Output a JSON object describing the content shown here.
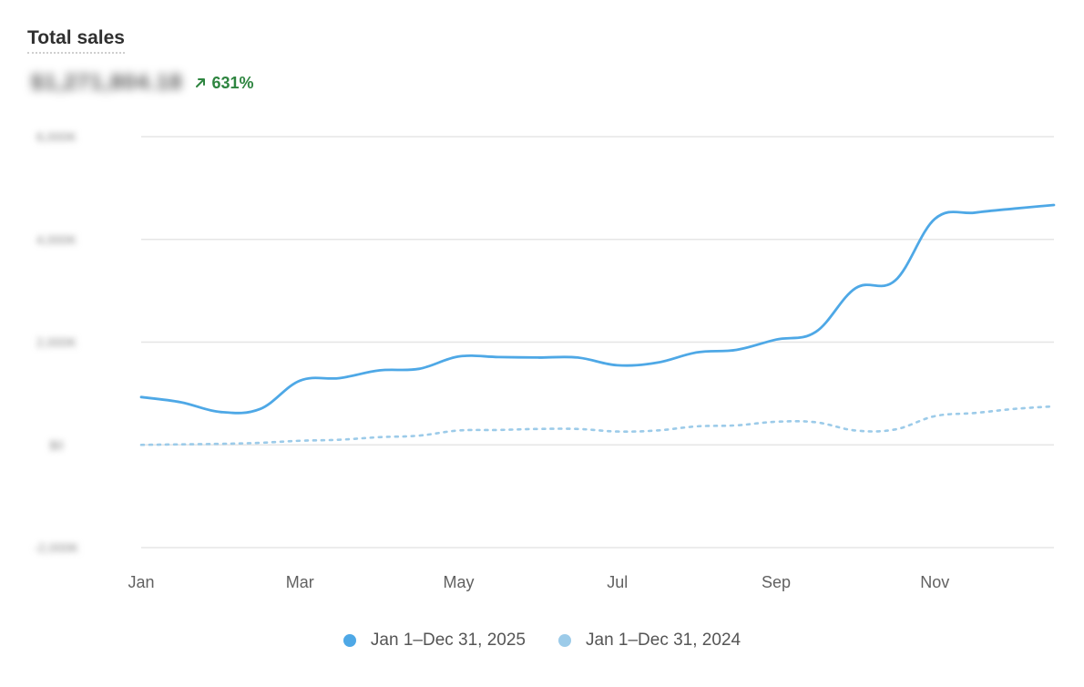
{
  "header": {
    "title": "Total sales",
    "value": "$1,271,804.18",
    "change_pct": "631%",
    "change_direction": "up",
    "change_color": "#2e8540"
  },
  "chart_data": {
    "type": "line",
    "title": "Total sales",
    "x_ticks": [
      "Jan",
      "Mar",
      "May",
      "Jul",
      "Sep",
      "Nov"
    ],
    "y_ticks": [
      "-2,000K",
      "$0",
      "2,000K",
      "4,000K",
      "6,000K"
    ],
    "ylim": [
      -2000,
      6000
    ],
    "x": [
      "Jan 1",
      "Jan 16",
      "Feb 1",
      "Feb 16",
      "Mar 1",
      "Mar 16",
      "Apr 1",
      "Apr 16",
      "May 1",
      "May 16",
      "Jun 1",
      "Jun 16",
      "Jul 1",
      "Jul 16",
      "Aug 1",
      "Aug 16",
      "Sep 1",
      "Sep 16",
      "Oct 1",
      "Oct 16",
      "Nov 1",
      "Nov 16",
      "Dec 1",
      "Dec 16"
    ],
    "series": [
      {
        "name": "Jan 1–Dec 31, 2025",
        "color": "#4ea8e6",
        "style": "solid",
        "values": [
          930,
          830,
          640,
          700,
          1250,
          1300,
          1450,
          1480,
          1720,
          1710,
          1700,
          1700,
          1550,
          1600,
          1800,
          1850,
          2050,
          2200,
          3050,
          3200,
          4400,
          4520,
          4600,
          4670
        ]
      },
      {
        "name": "Jan 1–Dec 31, 2024",
        "color": "#9ccbe9",
        "style": "dotted",
        "values": [
          0,
          10,
          20,
          40,
          80,
          100,
          150,
          180,
          280,
          290,
          310,
          310,
          260,
          280,
          360,
          380,
          450,
          440,
          280,
          300,
          560,
          620,
          700,
          750
        ]
      }
    ],
    "legend": "bottom-center",
    "grid": true
  }
}
